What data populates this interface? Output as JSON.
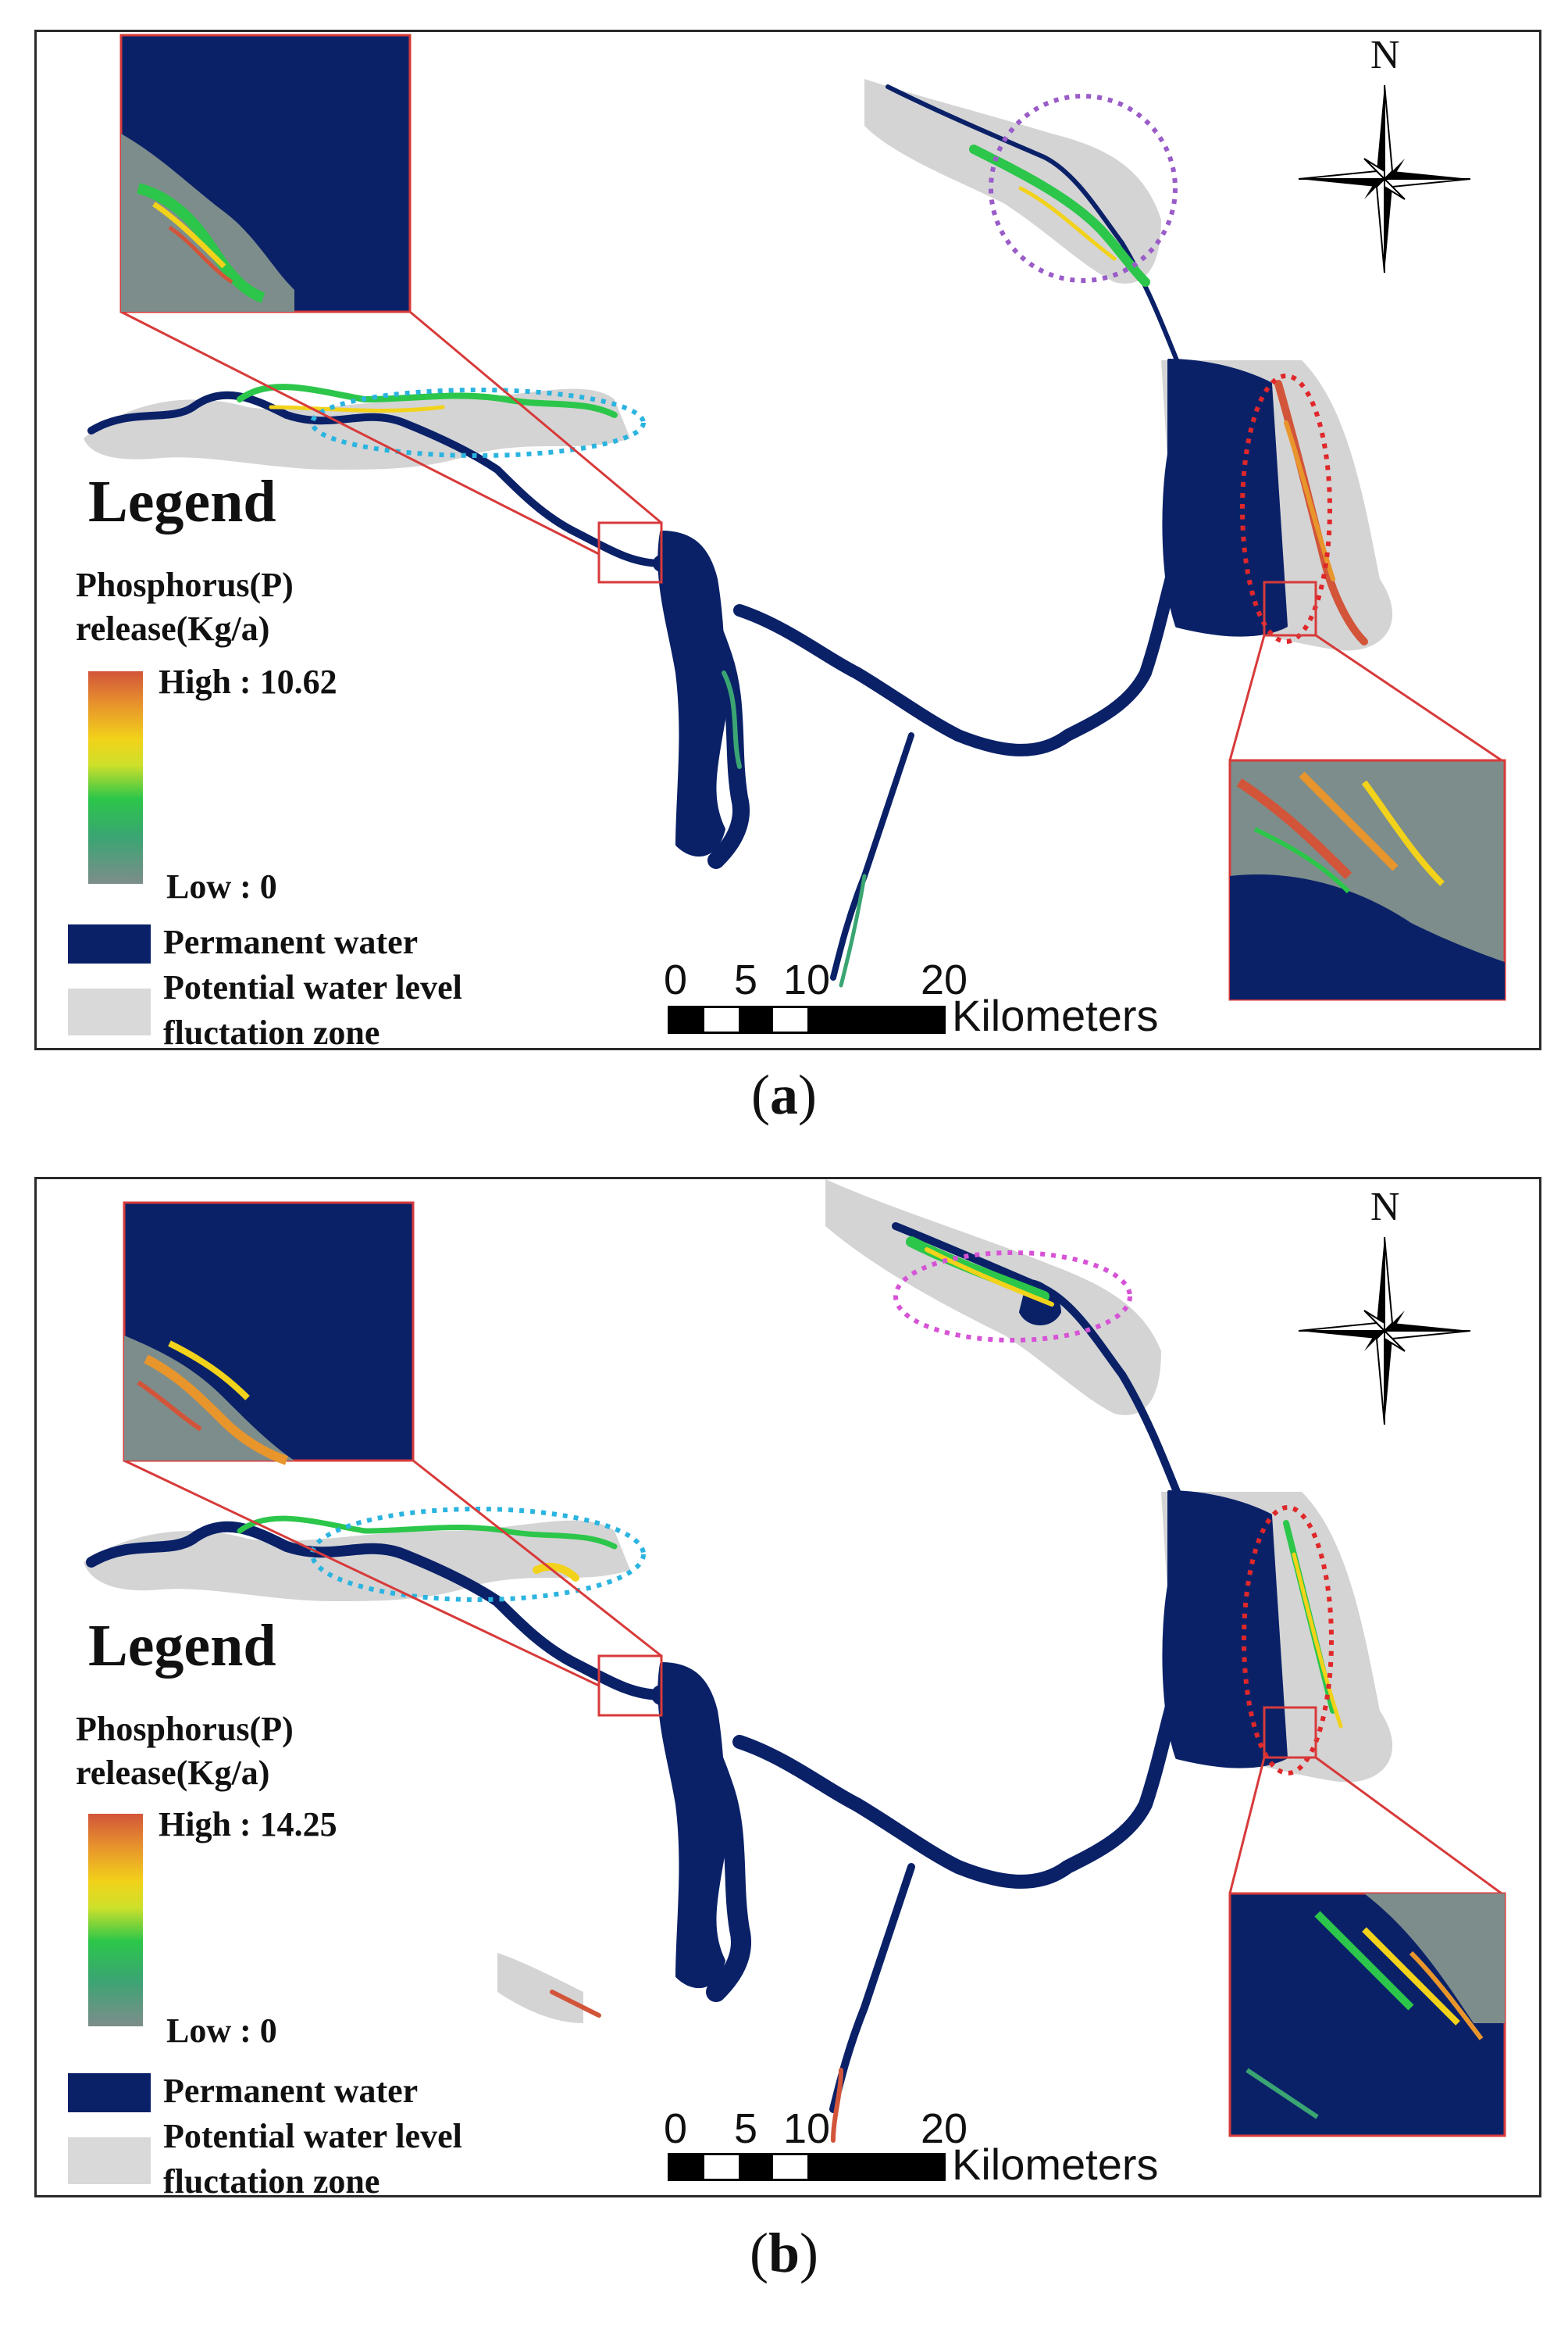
{
  "panels": [
    {
      "id": "a",
      "caption_letter": "a",
      "legend": {
        "title": "Legend",
        "subtitle": "Phosphorus(P) release(Kg/a)",
        "high_label": "High : 10.62",
        "low_label": "Low : 0",
        "high_value": 10.62,
        "low_value": 0,
        "permanent_water_label": "Permanent water",
        "zone_label": "Potential water level fluctation zone"
      },
      "scale": {
        "ticks": [
          "0",
          "5",
          "10",
          "20"
        ],
        "unit": "Kilometers"
      },
      "north": "N"
    },
    {
      "id": "b",
      "caption_letter": "b",
      "legend": {
        "title": "Legend",
        "subtitle": "Phosphorus(P) release(Kg/a)",
        "high_label": "High : 14.25",
        "low_label": "Low : 0",
        "high_value": 14.25,
        "low_value": 0,
        "permanent_water_label": "Permanent water",
        "zone_label": "Potential water level fluctation zone"
      },
      "scale": {
        "ticks": [
          "0",
          "5",
          "10",
          "20"
        ],
        "unit": "Kilometers"
      },
      "north": "N"
    }
  ],
  "colors": {
    "permanent_water": "#0a2168",
    "fluctuation_zone": "#d9d9d9",
    "ramp_high": "#d2553a",
    "ramp_mid": "#f2d21a",
    "ramp_green": "#2cc64a",
    "ramp_low": "#7d8d8b",
    "inset_frame": "#d83a3a",
    "ellipse_blue": "#2bb4e0",
    "ellipse_red": "#e0272a",
    "ellipse_purple_a": "#9a5cc8",
    "ellipse_purple_b": "#d653d6"
  },
  "icons": [
    "north-arrow-icon",
    "scale-bar-icon"
  ]
}
